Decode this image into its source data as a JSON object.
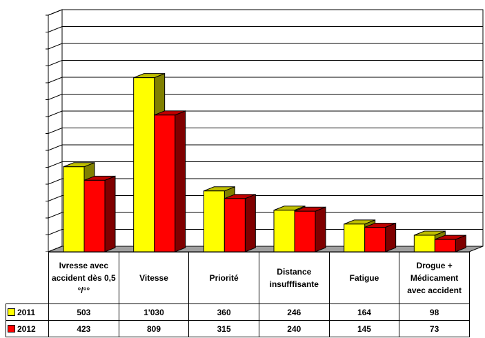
{
  "chart_data": {
    "type": "bar3d",
    "categories": [
      "Ivresse avec accident dès 0,5 °/°°",
      "Vitesse",
      "Priorité",
      "Distance insufffisante",
      "Fatigue",
      "Drogue + Médicament avec accident"
    ],
    "series": [
      {
        "name": "2011",
        "color": "#ffff00",
        "values": [
          503,
          1030,
          360,
          246,
          164,
          98
        ],
        "value_labels": [
          "503",
          "1'030",
          "360",
          "246",
          "164",
          "98"
        ]
      },
      {
        "name": "2012",
        "color": "#ff0000",
        "values": [
          423,
          809,
          315,
          240,
          145,
          73
        ]
      }
    ],
    "ylim": [
      0,
      1400
    ],
    "yticks": [
      0,
      100,
      200,
      300,
      400,
      500,
      600,
      700,
      800,
      900,
      1000,
      1100,
      1200,
      1300,
      1400
    ],
    "grid": true
  }
}
